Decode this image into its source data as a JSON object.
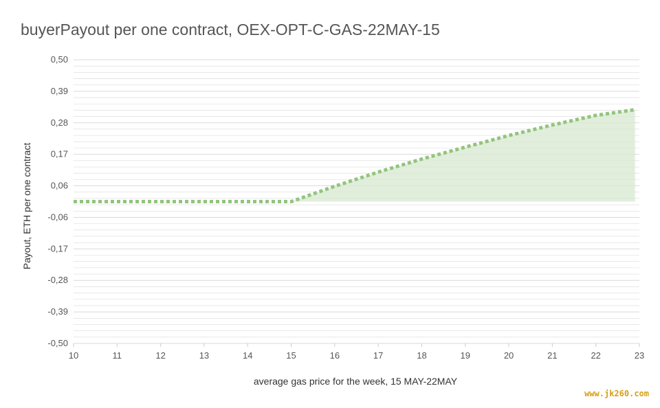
{
  "chart_data": {
    "type": "area",
    "title": "buyerPayout per one contract, OEX-OPT-C-GAS-22MAY-15",
    "xlabel": "average gas price for the week, 15 MAY-22MAY",
    "ylabel": "Payout, ETH per one contract",
    "xlim": [
      10,
      23
    ],
    "ylim": [
      -0.5,
      0.5
    ],
    "x_ticks": [
      "10",
      "11",
      "12",
      "13",
      "14",
      "15",
      "16",
      "17",
      "18",
      "19",
      "20",
      "21",
      "22",
      "23"
    ],
    "y_ticks": [
      "0,50",
      "0,39",
      "0,28",
      "0,17",
      "0,06",
      "-0,06",
      "-0,17",
      "-0,28",
      "-0,39",
      "-0,50"
    ],
    "series": [
      {
        "x": [
          10,
          15,
          16,
          17,
          18,
          19,
          20,
          21,
          22,
          22.9
        ],
        "values": [
          0.0,
          0.0,
          0.054,
          0.104,
          0.15,
          0.192,
          0.233,
          0.27,
          0.304,
          0.324
        ]
      }
    ],
    "colors": {
      "line": "#93c47d",
      "fill": "#d9ead3",
      "grid": "#d9d9d9",
      "text": "#555555"
    },
    "grid": true,
    "legend": "none"
  },
  "watermark": "www.jk260.com"
}
